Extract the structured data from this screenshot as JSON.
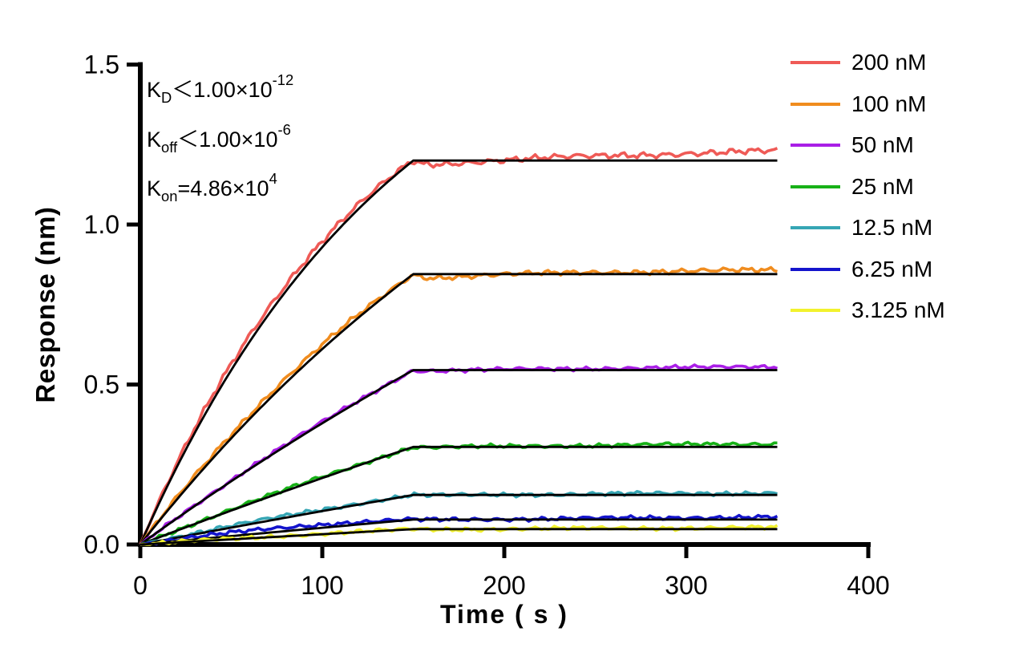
{
  "annotations": {
    "lines": [
      {
        "base": "K",
        "sub": "D",
        "body": "＜1.00×10",
        "exp": "-12"
      },
      {
        "base": "K",
        "sub": "off",
        "body": "＜1.00×10",
        "exp": "-6"
      },
      {
        "base": "K",
        "sub": "on",
        "body": "=4.86×10",
        "exp": "4"
      }
    ]
  },
  "chart_data": {
    "type": "line",
    "title": "",
    "xlabel": "Time ( s )",
    "ylabel": "Response (nm)",
    "xlim": [
      0,
      400
    ],
    "ylim": [
      0,
      1.5
    ],
    "x_ticks": [
      0,
      100,
      200,
      300,
      400
    ],
    "x_tick_labels": [
      "0",
      "100",
      "200",
      "300",
      "400"
    ],
    "y_ticks": [
      0,
      0.5,
      1.0,
      1.5
    ],
    "y_tick_labels": [
      "0.0",
      "0.5",
      "1.0",
      "1.5"
    ],
    "grid": false,
    "legend_position": "right-outside-top",
    "association_end_s": 150,
    "curve_end_s": 350,
    "fit_line_color": "#000000",
    "kinetics": {
      "KD": "<1.00×10^-12",
      "Koff": "<1.00×10^-6",
      "Kon": "4.86×10^4"
    },
    "series": [
      {
        "name": "200 nM",
        "concentration_nM": 200,
        "color": "#EF5A56",
        "k_obs_per_s": 0.007,
        "plateau_nm": 1.2,
        "end_nm": 1.23
      },
      {
        "name": "100 nM",
        "concentration_nM": 100,
        "color": "#F08C1E",
        "k_obs_per_s": 0.0035,
        "plateau_nm": 0.845,
        "end_nm": 0.858
      },
      {
        "name": "50 nM",
        "concentration_nM": 50,
        "color": "#A91EE6",
        "k_obs_per_s": 0.00175,
        "plateau_nm": 0.545,
        "end_nm": 0.556
      },
      {
        "name": "25 nM",
        "concentration_nM": 25,
        "color": "#17B117",
        "k_obs_per_s": 0.00088,
        "plateau_nm": 0.305,
        "end_nm": 0.315
      },
      {
        "name": "12.5 nM",
        "concentration_nM": 12.5,
        "color": "#36A6B4",
        "k_obs_per_s": 0.00044,
        "plateau_nm": 0.155,
        "end_nm": 0.161
      },
      {
        "name": "6.25 nM",
        "concentration_nM": 6.25,
        "color": "#1414CC",
        "k_obs_per_s": 0.00022,
        "plateau_nm": 0.078,
        "end_nm": 0.086
      },
      {
        "name": "3.125 nM",
        "concentration_nM": 3.125,
        "color": "#F2F22E",
        "k_obs_per_s": 0.00011,
        "plateau_nm": 0.048,
        "end_nm": 0.053
      }
    ]
  }
}
